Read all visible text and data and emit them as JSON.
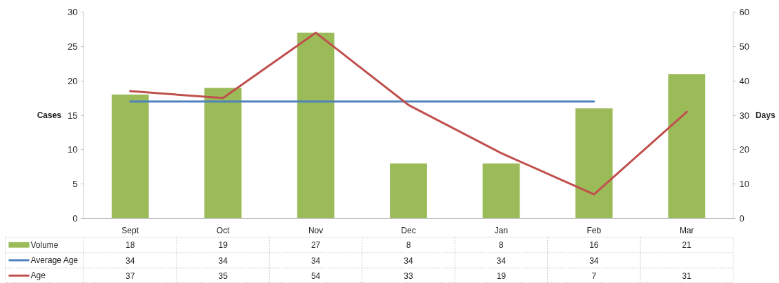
{
  "chart_data": {
    "type": "bar",
    "categories": [
      "Sept",
      "Oct",
      "Nov",
      "Dec",
      "Jan",
      "Feb",
      "Mar"
    ],
    "series": [
      {
        "name": "Volume",
        "color": "#9bbb59",
        "values": [
          18,
          19,
          27,
          8,
          8,
          16,
          21
        ]
      },
      {
        "name": "Average Age",
        "type": "line",
        "axis": "y2",
        "color": "#4f81bd",
        "values": [
          34,
          34,
          34,
          34,
          34,
          34,
          null
        ]
      },
      {
        "name": "Age",
        "type": "line",
        "axis": "y2",
        "color": "#c0504d",
        "values": [
          37,
          35,
          54,
          33,
          19,
          7,
          31
        ]
      }
    ],
    "ylabel": "Cases",
    "y2label": "Days",
    "ylim": [
      0,
      30
    ],
    "yticks": [
      0,
      5,
      10,
      15,
      20,
      25,
      30
    ],
    "y2lim": [
      0,
      60
    ],
    "y2ticks": [
      0,
      10,
      20,
      30,
      40,
      50,
      60
    ],
    "grid": false,
    "legend": "bottom",
    "data_labels": true,
    "line_style": "solid"
  }
}
